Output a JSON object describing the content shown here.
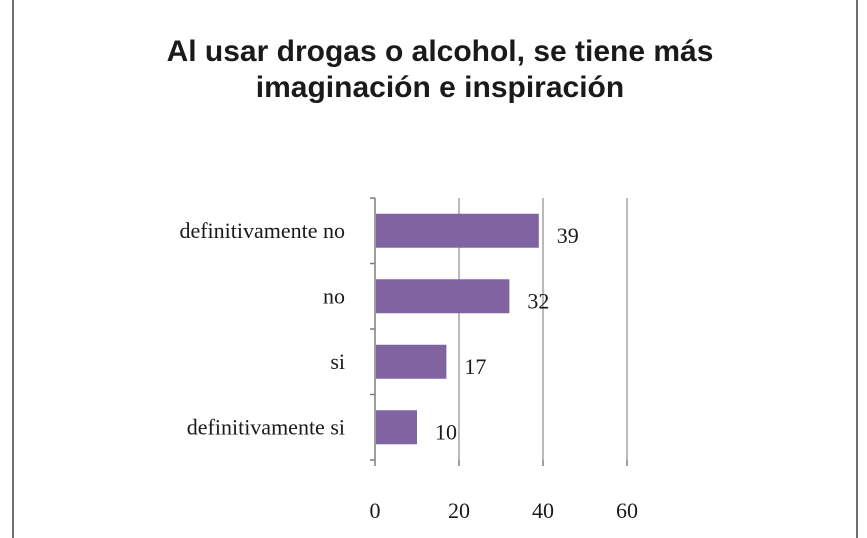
{
  "chart_data": {
    "type": "bar",
    "orientation": "horizontal",
    "title": "Al usar drogas o alcohol, se tiene más imaginación e inspiración",
    "categories": [
      "definitivamente no",
      "no",
      "si",
      "definitivamente si"
    ],
    "values": [
      39,
      32,
      17,
      10
    ],
    "xlim": [
      0,
      60
    ],
    "xticks": [
      0,
      20,
      40,
      60
    ],
    "grid": "vertical",
    "bar_color": "#8064a2",
    "legend": "none"
  }
}
